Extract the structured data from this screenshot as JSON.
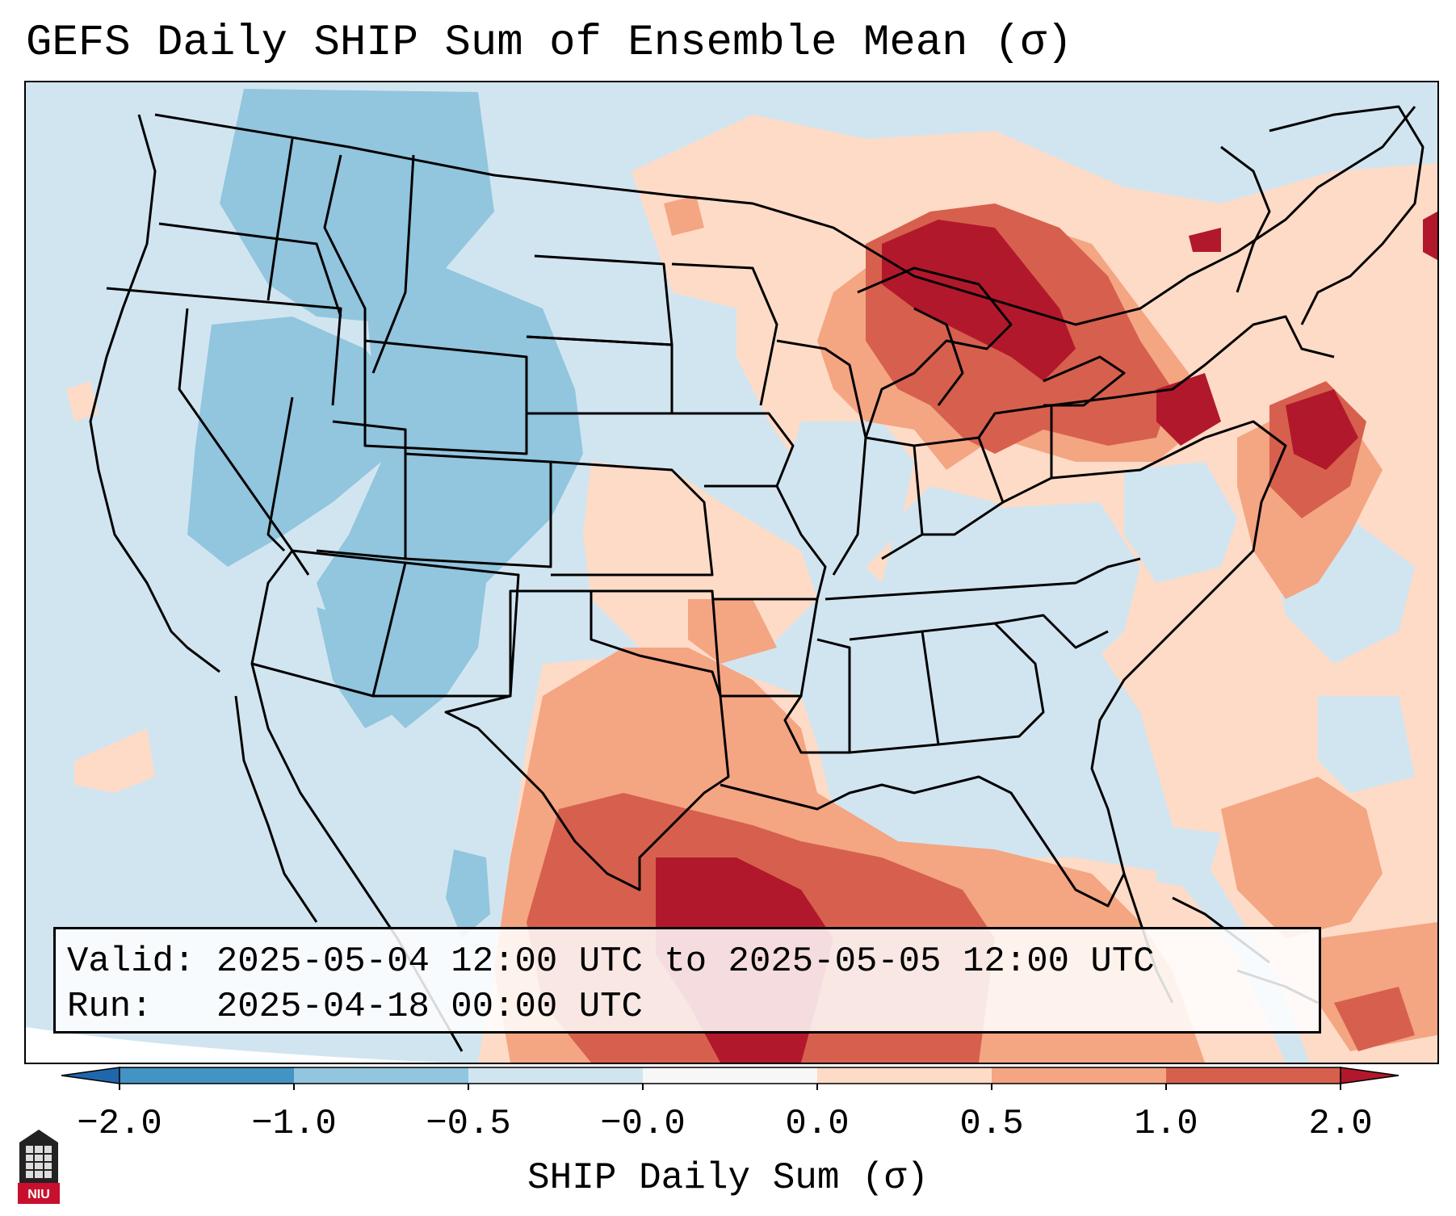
{
  "title": "GEFS Daily SHIP Sum of Ensemble Mean (σ)",
  "info": {
    "valid_label": "Valid:",
    "valid_value": "2025-05-04 12:00 UTC to 2025-05-05 12:00 UTC",
    "run_label": "Run:",
    "run_value": "2025-04-18 00:00 UTC"
  },
  "colorbar": {
    "title": "SHIP Daily Sum (σ)",
    "ticks": [
      "−2.0",
      "−1.0",
      "−0.5",
      "−0.0",
      "0.0",
      "0.5",
      "1.0",
      "2.0"
    ],
    "colors": [
      "#4393c3",
      "#92c5de",
      "#d1e5f0",
      "#f7f7f7",
      "#fddbc7",
      "#f4a582",
      "#d6604d"
    ],
    "extend_low_color": "#2166ac",
    "extend_high_color": "#b2182b"
  },
  "logo": {
    "text": "NIU"
  }
}
